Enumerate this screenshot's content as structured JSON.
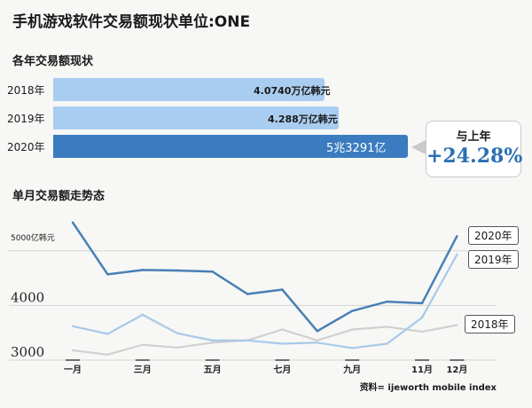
{
  "title": "手机游戏软件交易额现状单位:ONE",
  "annual": {
    "subtitle": "各年交易额现状",
    "rows": [
      {
        "year": "2018年",
        "label": "4.0740万亿韩元",
        "value": 4.074,
        "color": "#a9cdf0"
      },
      {
        "year": "2019年",
        "label": "4.288万亿韩元",
        "value": 4.288,
        "color": "#a9cdf0"
      },
      {
        "year": "2020年",
        "label": "5兆3291亿",
        "value": 5.3291,
        "color": "#3b7cc0"
      }
    ]
  },
  "yoy": {
    "title": "与上年",
    "value": "+24.28%"
  },
  "monthly": {
    "subtitle": "单月交易额走势态"
  },
  "source": "资料= ijeworth mobile index",
  "chart_data": {
    "type": "line",
    "title": "单月交易额走势态",
    "ylabel": "5000亿韩元",
    "ylim": [
      3000,
      5500
    ],
    "yticks": [
      "5000亿韩元",
      "4000",
      "3000"
    ],
    "x": [
      1,
      2,
      3,
      4,
      5,
      6,
      7,
      8,
      9,
      10,
      11,
      12
    ],
    "xtick_labels": [
      "一月",
      "三月",
      "五月",
      "七月",
      "九月",
      "11月",
      "12月"
    ],
    "xtick_positions": [
      1,
      3,
      5,
      7,
      9,
      11,
      12
    ],
    "series": [
      {
        "name": "2020年",
        "color": "#4a7fb5",
        "width": 2.5,
        "values": [
          5520,
          4570,
          4650,
          4640,
          4620,
          4210,
          4290,
          3530,
          3900,
          4070,
          4040,
          5270
        ]
      },
      {
        "name": "2019年",
        "color": "#a7c9ea",
        "width": 2.2,
        "values": [
          3620,
          3480,
          3830,
          3490,
          3360,
          3360,
          3300,
          3320,
          3220,
          3300,
          3780,
          4930
        ]
      },
      {
        "name": "2018年",
        "color": "#d0d0d0",
        "width": 2.2,
        "values": [
          3180,
          3100,
          3280,
          3230,
          3320,
          3360,
          3560,
          3360,
          3560,
          3610,
          3520,
          3640
        ]
      }
    ]
  }
}
